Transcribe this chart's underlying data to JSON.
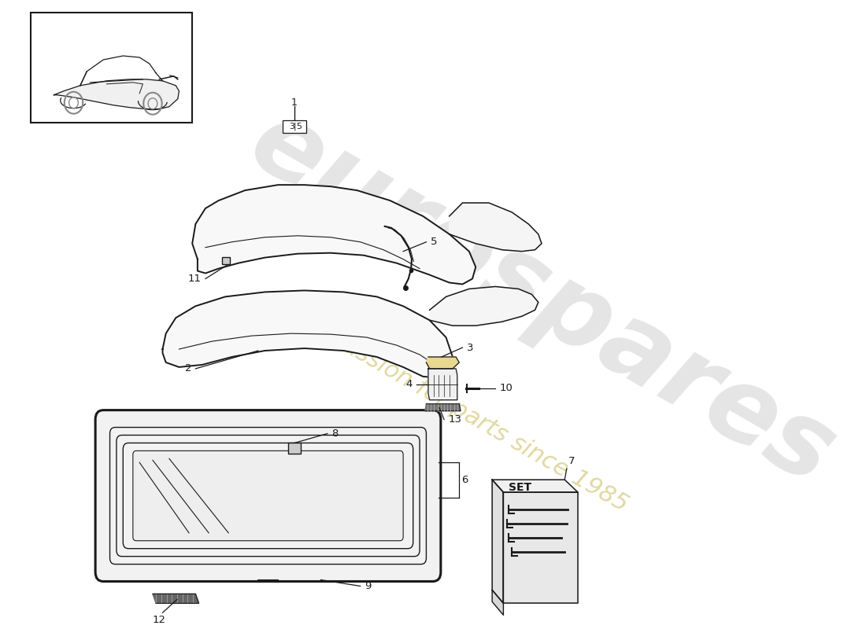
{
  "background_color": "#ffffff",
  "line_color": "#1a1a1a",
  "watermark_color1": "#c8c8c8",
  "watermark_color2": "#d4c87a",
  "parts_labels": [
    "1",
    "2",
    "3",
    "4",
    "5",
    "6",
    "7",
    "8",
    "9",
    "10",
    "11",
    "12",
    "13"
  ]
}
